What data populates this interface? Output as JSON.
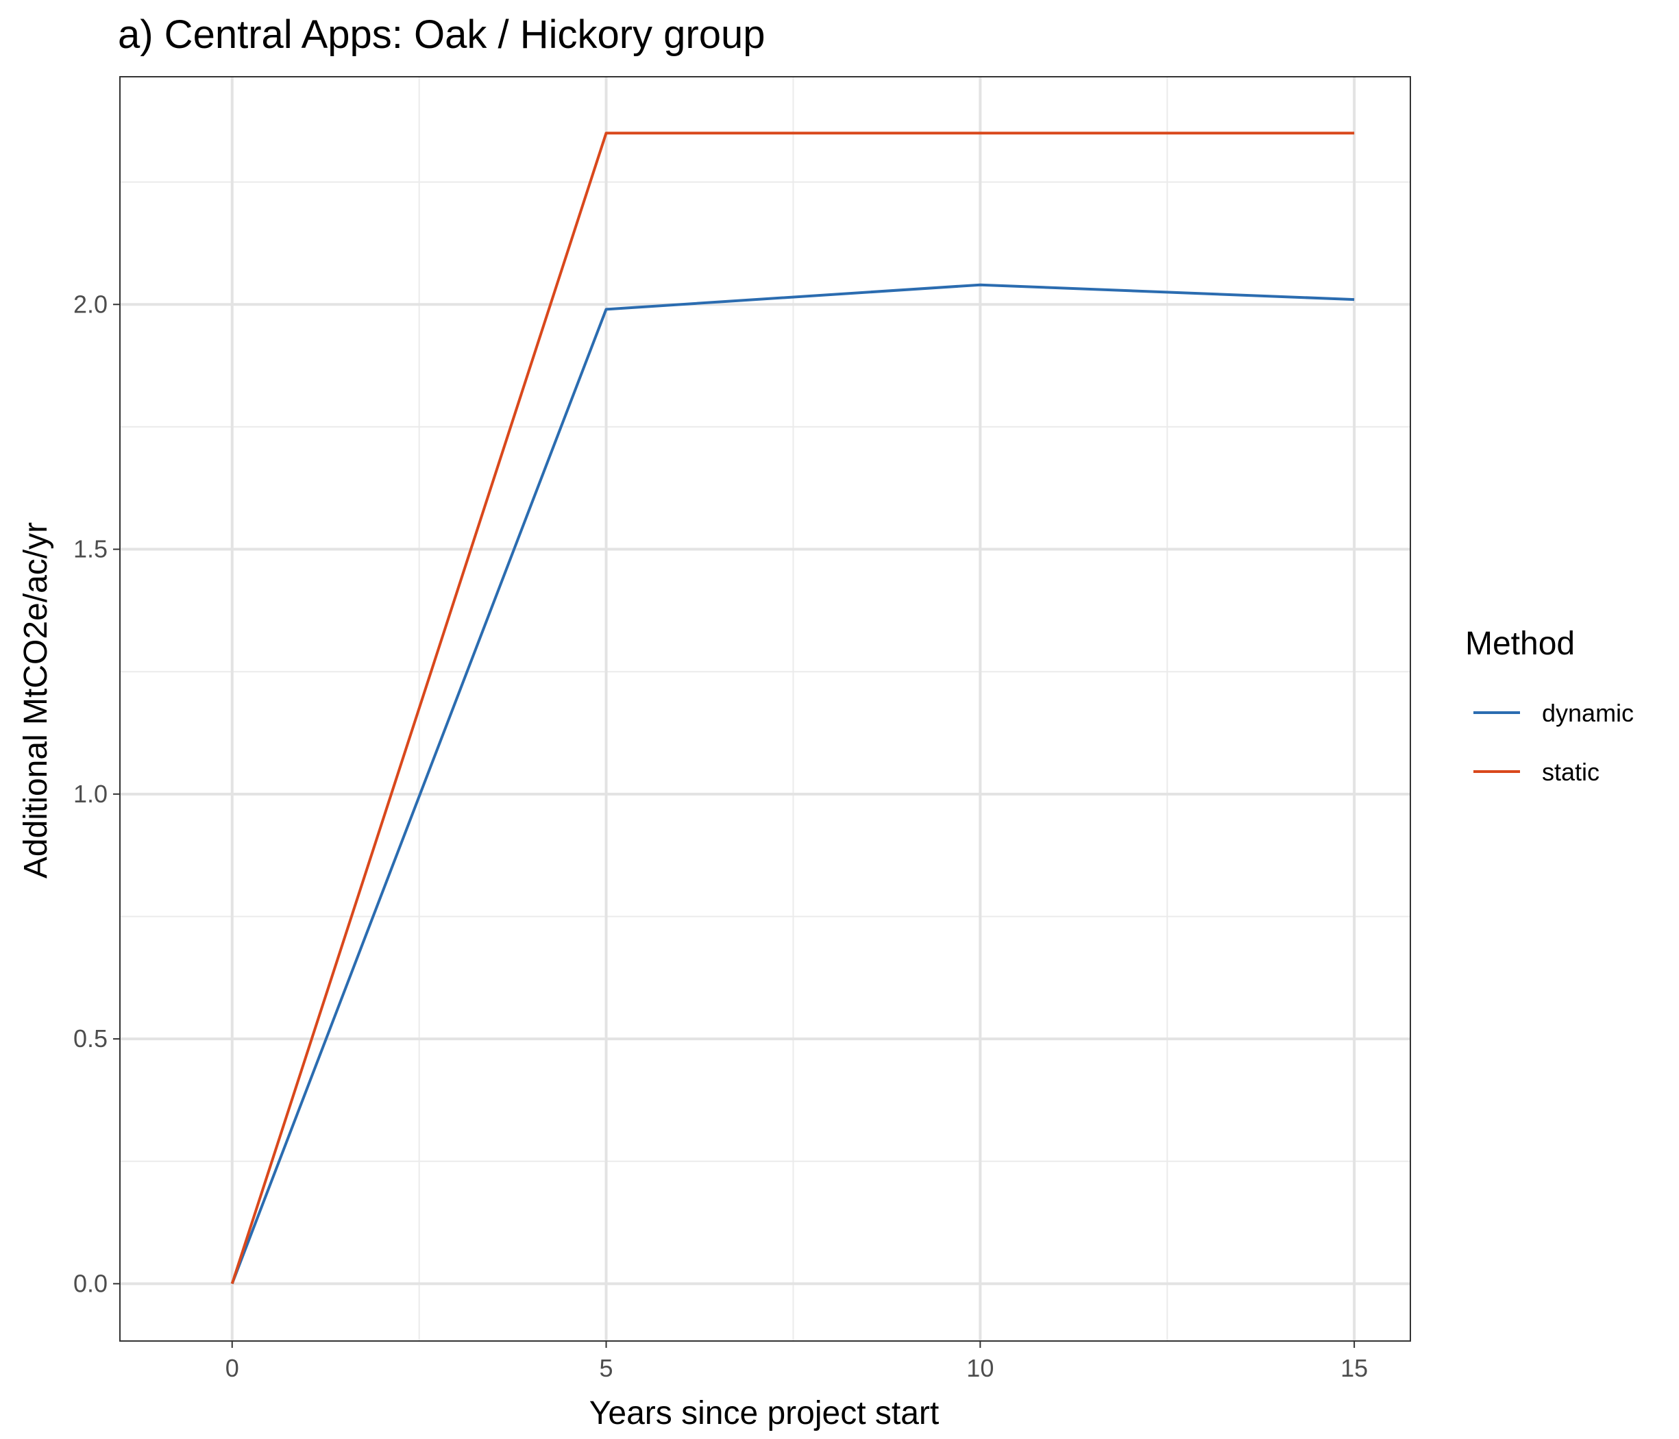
{
  "chart_data": {
    "type": "line",
    "title": "a) Central Apps: Oak / Hickory group",
    "xlabel": "Years since project start",
    "ylabel": "Additional MtCO2e/ac/yr",
    "xlim": [
      -1.5,
      15.75
    ],
    "ylim": [
      -0.117,
      2.465
    ],
    "xticks": [
      0,
      5,
      10,
      15
    ],
    "xtick_labels": [
      "0",
      "5",
      "10",
      "15"
    ],
    "yticks": [
      0,
      0.5,
      1.0,
      1.5,
      2.0
    ],
    "ytick_labels": [
      "0.0",
      "0.5",
      "1.0",
      "1.5",
      "2.0"
    ],
    "grid": true,
    "legend": {
      "title": "Method",
      "position": "right"
    },
    "x": [
      0,
      5,
      10,
      15
    ],
    "series": [
      {
        "name": "dynamic",
        "color": "#2b6cb0",
        "values": [
          0,
          1.99,
          2.04,
          2.01
        ]
      },
      {
        "name": "static",
        "color": "#d9481c",
        "values": [
          0,
          2.35,
          2.35,
          2.35
        ]
      }
    ]
  }
}
